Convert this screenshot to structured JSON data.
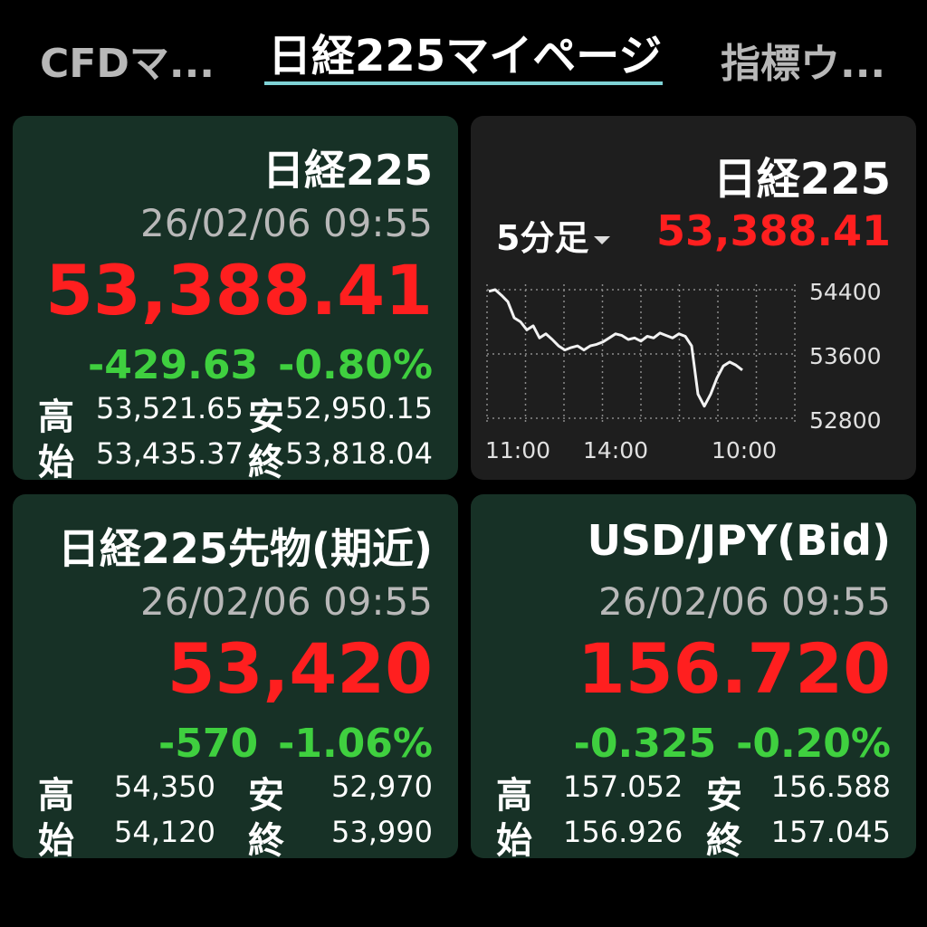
{
  "tabs": [
    {
      "label": "CFDマ..."
    },
    {
      "label": "日経225マイページ"
    },
    {
      "label": "指標ウ..."
    }
  ],
  "cards": {
    "nikkei": {
      "title": "日経225",
      "datetime": "26/02/06 09:55",
      "price": "53,388.41",
      "change": "-429.63",
      "change_pct": "-0.80%",
      "high_label": "高",
      "high": "53,521.65",
      "low_label": "安",
      "low": "52,950.15",
      "open_label": "始",
      "open": "53,435.37",
      "close_label": "終",
      "close": "53,818.04"
    },
    "chart": {
      "title": "日経225",
      "interval": "5分足",
      "price": "53,388.41"
    },
    "futures": {
      "title": "日経225先物(期近)",
      "datetime": "26/02/06 09:55",
      "price": "53,420",
      "change": "-570",
      "change_pct": "-1.06%",
      "high_label": "高",
      "high": "54,350",
      "low_label": "安",
      "low": "52,970",
      "open_label": "始",
      "open": "54,120",
      "close_label": "終",
      "close": "53,990"
    },
    "usdjpy": {
      "title": "USD/JPY(Bid)",
      "datetime": "26/02/06 09:55",
      "price": "156.720",
      "change": "-0.325",
      "change_pct": "-0.20%",
      "high_label": "高",
      "high": "157.052",
      "low_label": "安",
      "low": "156.588",
      "open_label": "始",
      "open": "156.926",
      "close_label": "終",
      "close": "157.045"
    }
  },
  "colors": {
    "up_down_red": "#ff1f1f",
    "change_green": "#3fd03f",
    "card_green": "#173126",
    "card_dark": "#1e1e1e",
    "tab_underline": "#7fd3d6"
  },
  "chart_data": {
    "type": "line",
    "x_ticks": [
      "11:00",
      "14:00",
      "10:00"
    ],
    "y_ticks": [
      54400,
      53600,
      52800
    ],
    "ylim": [
      52800,
      54400
    ],
    "grid": true,
    "series": [
      {
        "values": [
          54380,
          54400,
          54330,
          54250,
          54050,
          54000,
          53900,
          53950,
          53800,
          53850,
          53780,
          53700,
          53650,
          53680,
          53700,
          53650,
          53700,
          53720,
          53750,
          53800,
          53850,
          53830,
          53780,
          53800,
          53760,
          53820,
          53800,
          53860,
          53830,
          53800,
          53850,
          53820,
          53700,
          53100,
          52950,
          53100,
          53300,
          53450,
          53500,
          53460,
          53400
        ]
      }
    ]
  }
}
